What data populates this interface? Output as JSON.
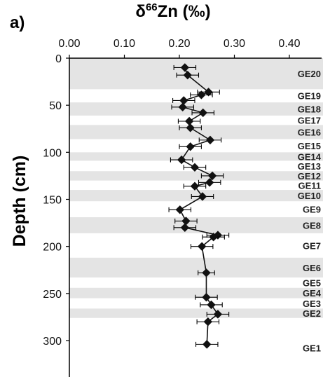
{
  "panel_label": "a)",
  "chart_data": {
    "type": "scatter",
    "title": "",
    "xlabel_main": "δ",
    "xlabel_sup": "66",
    "xlabel_rest": "Zn (‰)",
    "ylabel": "Depth (cm)",
    "xlim": [
      0.0,
      0.4
    ],
    "ylim": [
      0,
      340
    ],
    "x_ticks": [
      "0.00",
      "0.10",
      "0.20",
      "0.30",
      "0.40"
    ],
    "y_ticks": [
      "0",
      "50",
      "100",
      "150",
      "200",
      "250",
      "300"
    ],
    "x_axis_position": "top",
    "series": [
      {
        "line": true,
        "marker": "diamond",
        "points": [
          {
            "depth": 10,
            "value": 0.21,
            "err": 0.02
          },
          {
            "depth": 18,
            "value": 0.215,
            "err": 0.02
          },
          {
            "depth": 36,
            "value": 0.253,
            "err": 0.02
          },
          {
            "depth": 39,
            "value": 0.24,
            "err": 0.02
          },
          {
            "depth": 45,
            "value": 0.208,
            "err": 0.02
          },
          {
            "depth": 52,
            "value": 0.206,
            "err": 0.02
          },
          {
            "depth": 58,
            "value": 0.243,
            "err": 0.02
          },
          {
            "depth": 67,
            "value": 0.218,
            "err": 0.02
          },
          {
            "depth": 74,
            "value": 0.22,
            "err": 0.02
          },
          {
            "depth": 87,
            "value": 0.256,
            "err": 0.02
          },
          {
            "depth": 94,
            "value": 0.22,
            "err": 0.02
          },
          {
            "depth": 108,
            "value": 0.204,
            "err": 0.02
          },
          {
            "depth": 116,
            "value": 0.228,
            "err": 0.02
          },
          {
            "depth": 125,
            "value": 0.26,
            "err": 0.02
          },
          {
            "depth": 132,
            "value": 0.255,
            "err": 0.02
          },
          {
            "depth": 136,
            "value": 0.228,
            "err": 0.02
          },
          {
            "depth": 147,
            "value": 0.242,
            "err": 0.02
          },
          {
            "depth": 161,
            "value": 0.201,
            "err": 0.02
          },
          {
            "depth": 173,
            "value": 0.212,
            "err": 0.02
          },
          {
            "depth": 180,
            "value": 0.21,
            "err": 0.02
          },
          {
            "depth": 188,
            "value": 0.27,
            "err": 0.02
          },
          {
            "depth": 190,
            "value": 0.262,
            "err": 0.02
          },
          {
            "depth": 200,
            "value": 0.241,
            "err": 0.02
          },
          {
            "depth": 228,
            "value": 0.249,
            "err": 0.015
          },
          {
            "depth": 254,
            "value": 0.249,
            "err": 0.02
          },
          {
            "depth": 262,
            "value": 0.258,
            "err": 0.02
          },
          {
            "depth": 272,
            "value": 0.27,
            "err": 0.02
          },
          {
            "depth": 280,
            "value": 0.252,
            "err": 0.02
          },
          {
            "depth": 304,
            "value": 0.25,
            "err": 0.02
          }
        ]
      }
    ],
    "layers": [
      {
        "label": "GE20",
        "top": 0,
        "bottom": 33,
        "shaded": true
      },
      {
        "label": "GE19",
        "top": 33,
        "bottom": 47,
        "shaded": false
      },
      {
        "label": "GE18",
        "top": 47,
        "bottom": 61,
        "shaded": true
      },
      {
        "label": "GE17",
        "top": 61,
        "bottom": 71,
        "shaded": false
      },
      {
        "label": "GE16",
        "top": 71,
        "bottom": 86,
        "shaded": true
      },
      {
        "label": "GE15",
        "top": 86,
        "bottom": 100,
        "shaded": false
      },
      {
        "label": "GE14",
        "top": 100,
        "bottom": 109,
        "shaded": true
      },
      {
        "label": "GE13",
        "top": 109,
        "bottom": 120,
        "shaded": false
      },
      {
        "label": "GE12",
        "top": 120,
        "bottom": 130,
        "shaded": true
      },
      {
        "label": "GE11",
        "top": 130,
        "bottom": 140,
        "shaded": false
      },
      {
        "label": "GE10",
        "top": 140,
        "bottom": 152,
        "shaded": true
      },
      {
        "label": "GE9",
        "top": 152,
        "bottom": 169,
        "shaded": false
      },
      {
        "label": "GE8",
        "top": 169,
        "bottom": 186,
        "shaded": true
      },
      {
        "label": "GE7",
        "top": 186,
        "bottom": 212,
        "shaded": false
      },
      {
        "label": "GE6",
        "top": 212,
        "bottom": 233,
        "shaded": true
      },
      {
        "label": "GE5",
        "top": 233,
        "bottom": 244,
        "shaded": false
      },
      {
        "label": "GE4",
        "top": 244,
        "bottom": 255,
        "shaded": true
      },
      {
        "label": "GE3",
        "top": 255,
        "bottom": 266,
        "shaded": false
      },
      {
        "label": "GE2",
        "top": 266,
        "bottom": 276,
        "shaded": true
      },
      {
        "label": "GE1",
        "top": 276,
        "bottom": 340,
        "shaded": false
      }
    ],
    "colors": {
      "shade": "#e4e4e4",
      "marker": "#111111",
      "line": "#111111"
    }
  }
}
